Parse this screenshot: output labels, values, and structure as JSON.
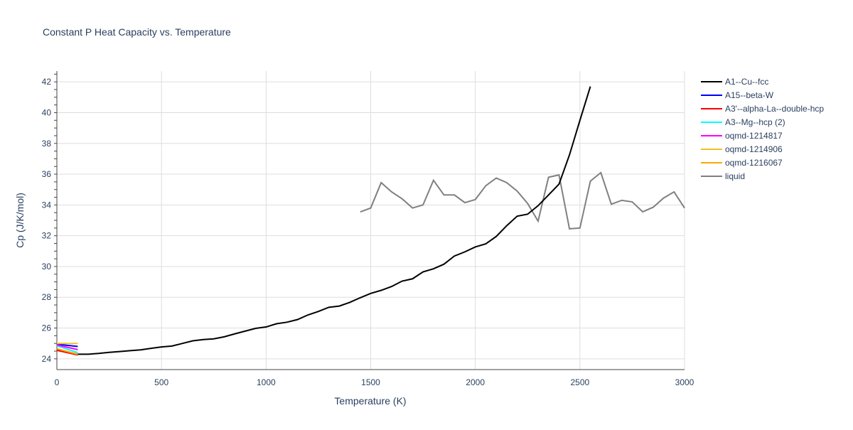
{
  "chart_data": {
    "type": "line",
    "title": "Constant P Heat Capacity vs. Temperature",
    "xlabel": "Temperature (K)",
    "ylabel": "Cp (J/K/mol)",
    "xlim": [
      0,
      3000
    ],
    "ylim": [
      23.3,
      42.7
    ],
    "xticks": [
      0,
      500,
      1000,
      1500,
      2000,
      2500,
      3000
    ],
    "yticks": [
      24,
      26,
      28,
      30,
      32,
      34,
      36,
      38,
      40,
      42
    ],
    "grid": true,
    "legend_position": "right",
    "series": [
      {
        "name": "A1--Cu--fcc",
        "color": "#000000",
        "x": [
          0,
          100,
          150,
          200,
          250,
          300,
          350,
          400,
          450,
          500,
          550,
          600,
          650,
          700,
          750,
          800,
          850,
          900,
          950,
          1000,
          1050,
          1100,
          1150,
          1200,
          1250,
          1300,
          1350,
          1400,
          1450,
          1500,
          1550,
          1600,
          1650,
          1700,
          1750,
          1800,
          1850,
          1900,
          1950,
          2000,
          2050,
          2100,
          2150,
          2200,
          2250,
          2300,
          2350,
          2400,
          2450,
          2500,
          2550
        ],
        "y": [
          24.6,
          24.3,
          24.3,
          24.35,
          24.42,
          24.47,
          24.53,
          24.58,
          24.68,
          24.77,
          24.83,
          25.0,
          25.17,
          25.25,
          25.3,
          25.43,
          25.62,
          25.8,
          25.98,
          26.07,
          26.28,
          26.38,
          26.55,
          26.85,
          27.08,
          27.35,
          27.43,
          27.67,
          27.97,
          28.25,
          28.45,
          28.7,
          29.05,
          29.2,
          29.65,
          29.85,
          30.15,
          30.68,
          30.95,
          31.27,
          31.47,
          31.95,
          32.65,
          33.27,
          33.4,
          33.95,
          34.65,
          35.35,
          37.25,
          39.5,
          41.7
        ]
      },
      {
        "name": "A15--beta-W",
        "color": "#0000ff",
        "x": [
          0,
          100
        ],
        "y": [
          24.95,
          24.8
        ]
      },
      {
        "name": "A3'--alpha-La--double-hcp",
        "color": "#ff0000",
        "x": [
          0,
          100
        ],
        "y": [
          24.55,
          24.25
        ]
      },
      {
        "name": "A3--Mg--hcp (2)",
        "color": "#00ffff",
        "x": [
          0,
          100
        ],
        "y": [
          24.85,
          24.4
        ]
      },
      {
        "name": "oqmd-1214817",
        "color": "#ff00ff",
        "x": [
          0,
          100
        ],
        "y": [
          24.9,
          24.6
        ]
      },
      {
        "name": "oqmd-1214906",
        "color": "#f0c020",
        "x": [
          0,
          100
        ],
        "y": [
          25.0,
          25.0
        ]
      },
      {
        "name": "oqmd-1216067",
        "color": "#ffa500",
        "x": [
          0,
          100
        ],
        "y": [
          24.65,
          24.3
        ]
      },
      {
        "name": "liquid",
        "color": "#808080",
        "x": [
          1450,
          1500,
          1550,
          1600,
          1650,
          1700,
          1750,
          1800,
          1850,
          1900,
          1950,
          2000,
          2050,
          2100,
          2150,
          2200,
          2250,
          2300,
          2350,
          2400,
          2450,
          2500,
          2550,
          2600,
          2650,
          2700,
          2750,
          2800,
          2850,
          2900,
          2950,
          3000
        ],
        "y": [
          33.55,
          33.8,
          35.45,
          34.85,
          34.4,
          33.8,
          34.0,
          35.6,
          34.65,
          34.65,
          34.15,
          34.35,
          35.25,
          35.75,
          35.45,
          34.9,
          34.1,
          32.95,
          35.8,
          35.95,
          32.45,
          32.5,
          35.55,
          36.1,
          34.05,
          34.3,
          34.2,
          33.55,
          33.85,
          34.45,
          34.85,
          33.8
        ]
      }
    ]
  }
}
